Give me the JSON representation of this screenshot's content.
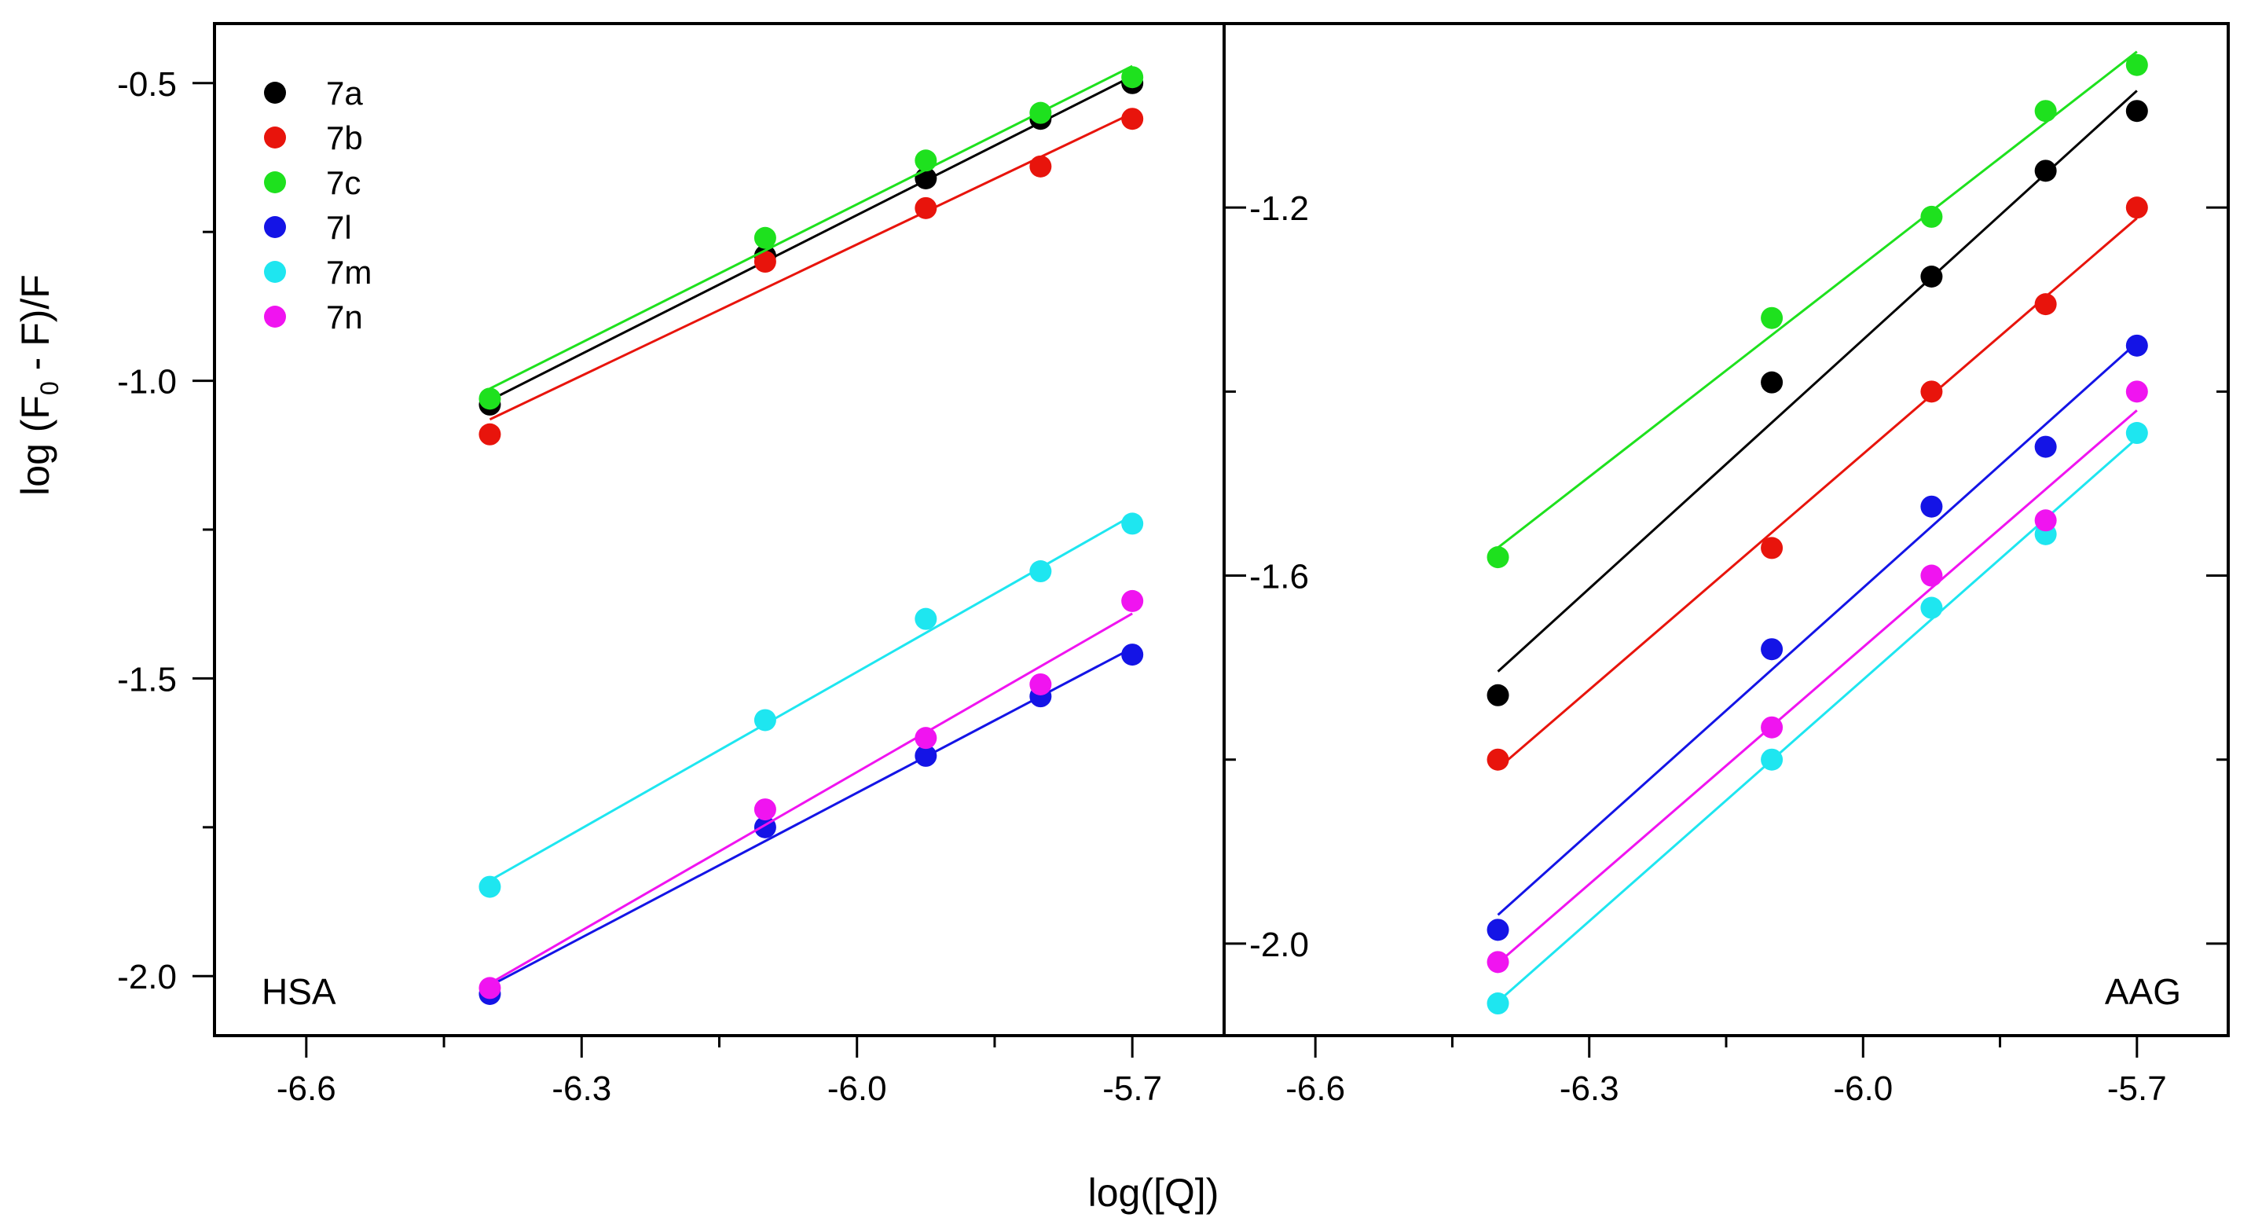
{
  "chart_data": {
    "type": "scatter",
    "xlabel": "log([Q])",
    "ylabel_parts": [
      "log (F",
      "0",
      " - F)/F"
    ],
    "panels": [
      {
        "id": "hsa",
        "label": "HSA",
        "label_position": "bottom-left",
        "xlim": [
          -6.7,
          -5.6
        ],
        "ylim": [
          -2.1,
          -0.4
        ],
        "xticks": [
          -6.6,
          -6.3,
          -6.0,
          -5.7
        ],
        "xtick_labels": [
          "-6.6",
          "-6.3",
          "-6.0",
          "-5.7"
        ],
        "yticks": [
          -2.0,
          -1.5,
          -1.0,
          -0.5
        ],
        "ytick_labels": [
          "-2.0",
          "-1.5",
          "-1.0",
          "-0.5"
        ],
        "x": [
          -6.4,
          -6.1,
          -5.925,
          -5.8,
          -5.7
        ],
        "series": [
          {
            "name": "7a",
            "color": "#000000",
            "values": [
              -1.04,
              -0.79,
              -0.66,
              -0.56,
              -0.5
            ]
          },
          {
            "name": "7b",
            "color": "#e8140c",
            "values": [
              -1.09,
              -0.8,
              -0.71,
              -0.64,
              -0.56
            ]
          },
          {
            "name": "7c",
            "color": "#1ee11e",
            "values": [
              -1.03,
              -0.76,
              -0.63,
              -0.55,
              -0.49
            ]
          },
          {
            "name": "7l",
            "color": "#1414e6",
            "values": [
              -2.03,
              -1.75,
              -1.63,
              -1.53,
              -1.46
            ]
          },
          {
            "name": "7m",
            "color": "#1ee6f0",
            "values": [
              -1.85,
              -1.57,
              -1.4,
              -1.32,
              -1.24
            ]
          },
          {
            "name": "7n",
            "color": "#f014f0",
            "values": [
              -2.02,
              -1.72,
              -1.6,
              -1.51,
              -1.37
            ]
          }
        ]
      },
      {
        "id": "aag",
        "label": "AAG",
        "label_position": "bottom-right",
        "xlim": [
          -6.7,
          -5.6
        ],
        "ylim": [
          -2.1,
          -1.0
        ],
        "xticks": [
          -6.6,
          -6.3,
          -6.0,
          -5.7
        ],
        "xtick_labels": [
          "-6.6",
          "-6.3",
          "-6.0",
          "-5.7"
        ],
        "yticks": [
          -2.0,
          -1.6,
          -1.2
        ],
        "ytick_labels": [
          "-2.0",
          "-1.6",
          "-1.2"
        ],
        "x": [
          -6.4,
          -6.1,
          -5.925,
          -5.8,
          -5.7
        ],
        "series": [
          {
            "name": "7a",
            "color": "#000000",
            "values": [
              -1.73,
              -1.39,
              -1.275,
              -1.16,
              -1.095
            ]
          },
          {
            "name": "7b",
            "color": "#e8140c",
            "values": [
              -1.8,
              -1.57,
              -1.4,
              -1.305,
              -1.2
            ]
          },
          {
            "name": "7c",
            "color": "#1ee11e",
            "values": [
              -1.58,
              -1.32,
              -1.21,
              -1.095,
              -1.045
            ]
          },
          {
            "name": "7l",
            "color": "#1414e6",
            "values": [
              -1.985,
              -1.68,
              -1.525,
              -1.46,
              -1.35
            ]
          },
          {
            "name": "7m",
            "color": "#1ee6f0",
            "values": [
              -2.065,
              -1.8,
              -1.635,
              -1.555,
              -1.445
            ]
          },
          {
            "name": "7n",
            "color": "#f014f0",
            "values": [
              -2.02,
              -1.765,
              -1.6,
              -1.54,
              -1.4
            ]
          }
        ]
      }
    ],
    "legend": {
      "placement": "top-left of left panel",
      "entries": [
        "7a",
        "7b",
        "7c",
        "7l",
        "7m",
        "7n"
      ]
    }
  }
}
